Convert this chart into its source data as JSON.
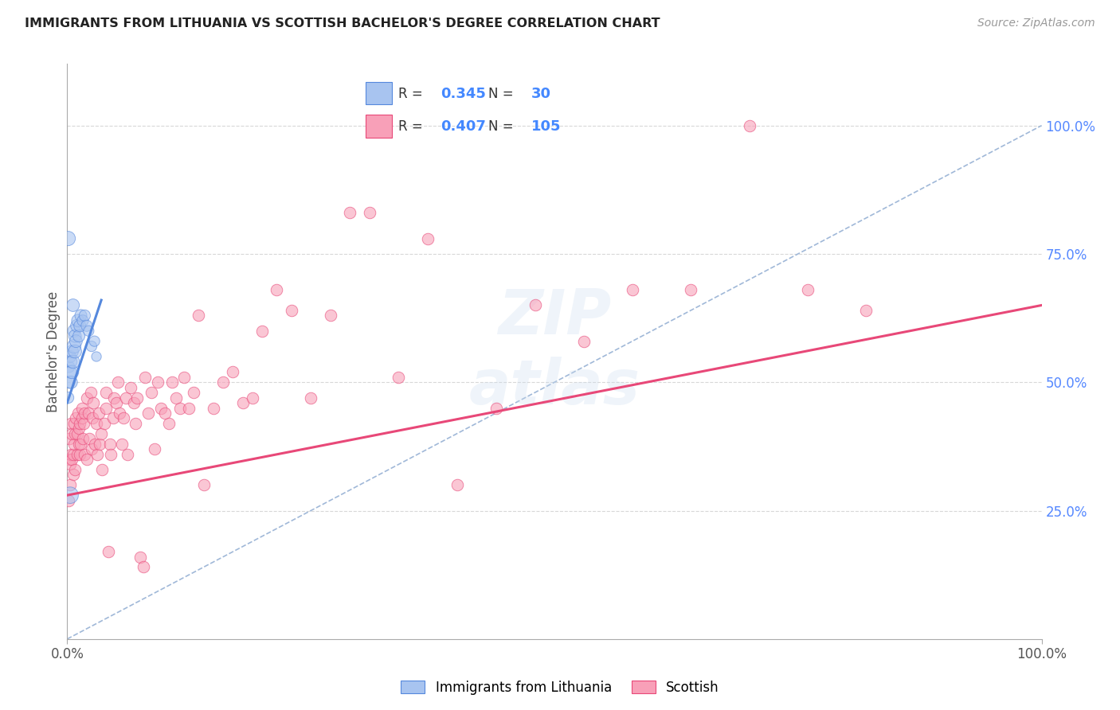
{
  "title": "IMMIGRANTS FROM LITHUANIA VS SCOTTISH BACHELOR'S DEGREE CORRELATION CHART",
  "source": "Source: ZipAtlas.com",
  "ylabel": "Bachelor's Degree",
  "legend_blue_R": "0.345",
  "legend_blue_N": "30",
  "legend_pink_R": "0.407",
  "legend_pink_N": "105",
  "legend_label_blue": "Immigrants from Lithuania",
  "legend_label_pink": "Scottish",
  "bg_color": "#ffffff",
  "grid_color": "#d8d8d8",
  "blue_fill": "#a8c4f0",
  "blue_edge": "#5588dd",
  "pink_fill": "#f8a0b8",
  "pink_edge": "#e84878",
  "diag_color": "#a0b8d8",
  "xlim": [
    0.0,
    1.0
  ],
  "ylim": [
    0.0,
    1.12
  ],
  "blue_scatter_x": [
    0.001,
    0.002,
    0.002,
    0.003,
    0.003,
    0.004,
    0.004,
    0.005,
    0.005,
    0.006,
    0.007,
    0.007,
    0.008,
    0.008,
    0.009,
    0.01,
    0.011,
    0.012,
    0.013,
    0.014,
    0.016,
    0.018,
    0.02,
    0.022,
    0.025,
    0.028,
    0.03,
    0.001,
    0.006,
    0.003
  ],
  "blue_scatter_y": [
    0.47,
    0.5,
    0.53,
    0.52,
    0.55,
    0.5,
    0.54,
    0.52,
    0.56,
    0.54,
    0.57,
    0.6,
    0.56,
    0.59,
    0.58,
    0.61,
    0.62,
    0.59,
    0.61,
    0.63,
    0.62,
    0.63,
    0.61,
    0.6,
    0.57,
    0.58,
    0.55,
    0.78,
    0.65,
    0.28
  ],
  "blue_scatter_s": [
    80,
    90,
    80,
    100,
    90,
    100,
    90,
    110,
    100,
    110,
    120,
    100,
    110,
    100,
    100,
    100,
    100,
    90,
    90,
    90,
    80,
    80,
    80,
    70,
    70,
    70,
    60,
    130,
    100,
    170
  ],
  "pink_scatter_x": [
    0.001,
    0.002,
    0.002,
    0.003,
    0.003,
    0.004,
    0.004,
    0.005,
    0.005,
    0.006,
    0.006,
    0.007,
    0.007,
    0.008,
    0.008,
    0.009,
    0.01,
    0.01,
    0.011,
    0.012,
    0.012,
    0.013,
    0.013,
    0.014,
    0.015,
    0.015,
    0.016,
    0.017,
    0.018,
    0.018,
    0.02,
    0.02,
    0.022,
    0.023,
    0.024,
    0.025,
    0.026,
    0.027,
    0.028,
    0.03,
    0.031,
    0.032,
    0.033,
    0.035,
    0.036,
    0.038,
    0.04,
    0.04,
    0.042,
    0.044,
    0.045,
    0.047,
    0.048,
    0.05,
    0.052,
    0.054,
    0.056,
    0.058,
    0.06,
    0.062,
    0.065,
    0.068,
    0.07,
    0.072,
    0.075,
    0.078,
    0.08,
    0.083,
    0.086,
    0.09,
    0.093,
    0.096,
    0.1,
    0.104,
    0.108,
    0.112,
    0.116,
    0.12,
    0.125,
    0.13,
    0.135,
    0.14,
    0.15,
    0.16,
    0.17,
    0.18,
    0.19,
    0.2,
    0.215,
    0.23,
    0.25,
    0.27,
    0.29,
    0.31,
    0.34,
    0.37,
    0.4,
    0.44,
    0.48,
    0.53,
    0.58,
    0.64,
    0.7,
    0.76,
    0.82
  ],
  "pink_scatter_y": [
    0.27,
    0.35,
    0.39,
    0.3,
    0.34,
    0.36,
    0.42,
    0.35,
    0.4,
    0.32,
    0.36,
    0.38,
    0.42,
    0.33,
    0.4,
    0.43,
    0.36,
    0.4,
    0.44,
    0.38,
    0.41,
    0.36,
    0.42,
    0.38,
    0.43,
    0.45,
    0.39,
    0.42,
    0.36,
    0.44,
    0.47,
    0.35,
    0.44,
    0.39,
    0.48,
    0.37,
    0.43,
    0.46,
    0.38,
    0.42,
    0.36,
    0.44,
    0.38,
    0.4,
    0.33,
    0.42,
    0.45,
    0.48,
    0.17,
    0.38,
    0.36,
    0.43,
    0.47,
    0.46,
    0.5,
    0.44,
    0.38,
    0.43,
    0.47,
    0.36,
    0.49,
    0.46,
    0.42,
    0.47,
    0.16,
    0.14,
    0.51,
    0.44,
    0.48,
    0.37,
    0.5,
    0.45,
    0.44,
    0.42,
    0.5,
    0.47,
    0.45,
    0.51,
    0.45,
    0.48,
    0.63,
    0.3,
    0.45,
    0.5,
    0.52,
    0.46,
    0.47,
    0.6,
    0.68,
    0.64,
    0.47,
    0.63,
    0.83,
    0.83,
    0.51,
    0.78,
    0.3,
    0.45,
    0.65,
    0.58,
    0.68,
    0.68,
    1.0,
    0.68,
    0.64
  ],
  "blue_trend_x": [
    0.0,
    0.035
  ],
  "blue_trend_y": [
    0.46,
    0.66
  ],
  "pink_trend_x": [
    0.0,
    1.0
  ],
  "pink_trend_y": [
    0.28,
    0.65
  ]
}
